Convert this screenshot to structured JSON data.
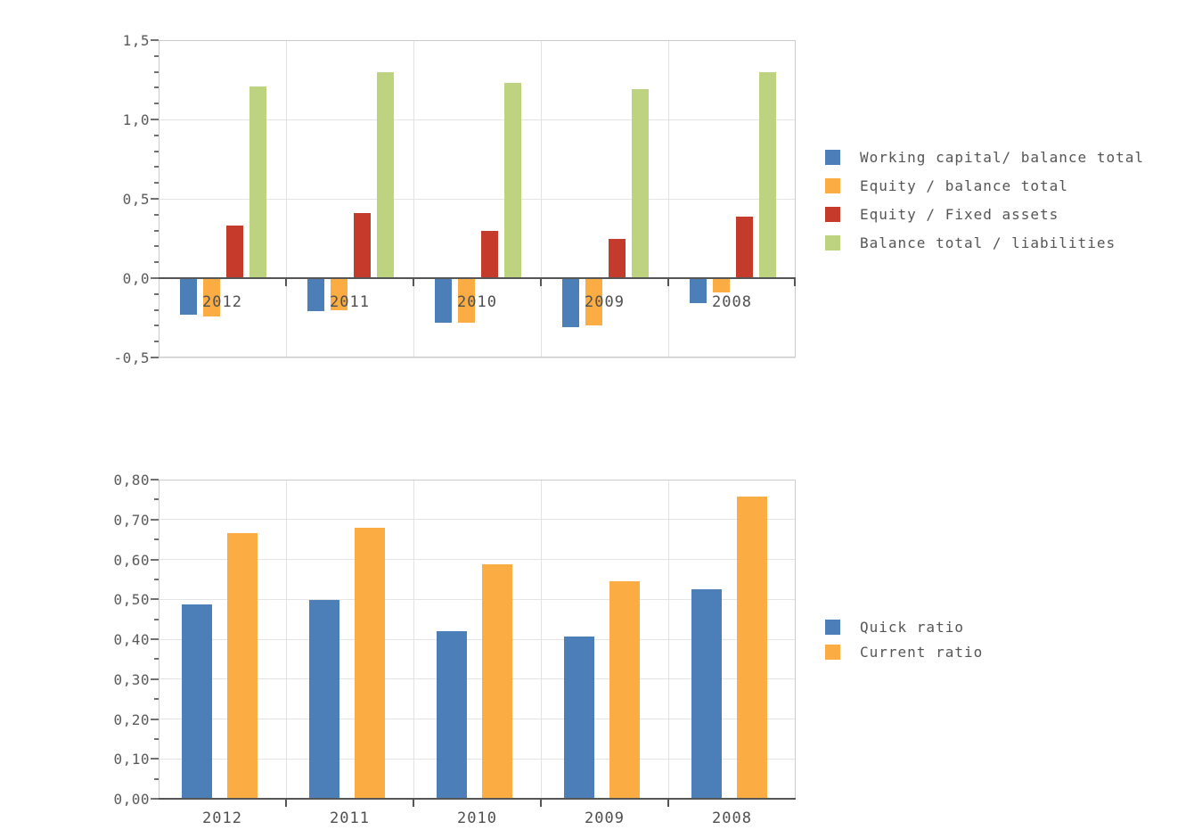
{
  "page": {
    "background": "#ffffff",
    "text_color": "#555555"
  },
  "colors": {
    "blue": "#4c7eb8",
    "orange": "#fbac43",
    "red": "#c43a2b",
    "green": "#bdd37f",
    "gridline": "#e4e4e4",
    "axis_border": "#cccccc",
    "baseline": "#555555",
    "tick": "#707070"
  },
  "chart_data": [
    {
      "id": "solvency-ratios",
      "type": "bar",
      "title": "",
      "xlabel": "",
      "ylabel": "",
      "categories": [
        "2012",
        "2011",
        "2010",
        "2009",
        "2008"
      ],
      "series": [
        {
          "name": "Working capital/ balance total",
          "color": "#4c7eb8",
          "values": [
            -0.23,
            -0.21,
            -0.28,
            -0.31,
            -0.16
          ]
        },
        {
          "name": "Equity / balance total",
          "color": "#fbac43",
          "values": [
            -0.24,
            -0.2,
            -0.28,
            -0.3,
            -0.09
          ]
        },
        {
          "name": "Equity / Fixed assets",
          "color": "#c43a2b",
          "values": [
            0.33,
            0.41,
            0.3,
            0.25,
            0.39
          ]
        },
        {
          "name": "Balance total / liabilities",
          "color": "#bdd37f",
          "values": [
            1.21,
            1.3,
            1.23,
            1.19,
            1.3
          ]
        }
      ],
      "ylim": [
        -0.5,
        1.5
      ],
      "yticks": [
        {
          "v": -0.5,
          "label": "-0,5"
        },
        {
          "v": 0.0,
          "label": "0,0"
        },
        {
          "v": 0.5,
          "label": "0,5"
        },
        {
          "v": 1.0,
          "label": "1,0"
        },
        {
          "v": 1.5,
          "label": "1,5"
        }
      ],
      "minor_tick_step": 0.1,
      "grid": true,
      "legend_position": "right"
    },
    {
      "id": "liquidity-ratios",
      "type": "bar",
      "title": "",
      "xlabel": "",
      "ylabel": "",
      "categories": [
        "2012",
        "2011",
        "2010",
        "2009",
        "2008"
      ],
      "series": [
        {
          "name": "Quick ratio",
          "color": "#4c7eb8",
          "values": [
            0.487,
            0.499,
            0.419,
            0.407,
            0.525
          ]
        },
        {
          "name": "Current ratio",
          "color": "#fbac43",
          "values": [
            0.665,
            0.679,
            0.587,
            0.546,
            0.757
          ]
        }
      ],
      "ylim": [
        0.0,
        0.8
      ],
      "yticks": [
        {
          "v": 0.0,
          "label": "0,00"
        },
        {
          "v": 0.1,
          "label": "0,10"
        },
        {
          "v": 0.2,
          "label": "0,20"
        },
        {
          "v": 0.3,
          "label": "0,30"
        },
        {
          "v": 0.4,
          "label": "0,40"
        },
        {
          "v": 0.5,
          "label": "0,50"
        },
        {
          "v": 0.6,
          "label": "0,60"
        },
        {
          "v": 0.7,
          "label": "0,70"
        },
        {
          "v": 0.8,
          "label": "0,80"
        }
      ],
      "minor_tick_step": 0.05,
      "grid": true,
      "legend_position": "right"
    }
  ]
}
